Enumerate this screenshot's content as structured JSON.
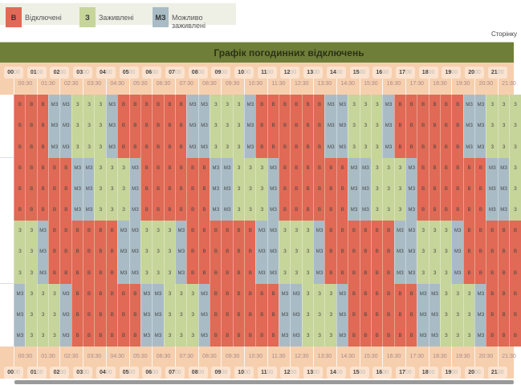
{
  "legend": [
    {
      "code": "В",
      "label": "Відключені",
      "color": "#e06a55"
    },
    {
      "code": "З",
      "label": "Заживлені",
      "color": "#c6d59a"
    },
    {
      "code": "МЗ",
      "label": "Можливо заживлені",
      "color": "#a9bcc6"
    }
  ],
  "pager_text": "Сторінку",
  "title": "Графік погодинних відключень",
  "hours": [
    "00",
    "01",
    "02",
    "03",
    "04",
    "05",
    "06",
    "07",
    "08",
    "09",
    "10",
    "11",
    "12",
    "13",
    "14",
    "15",
    "16",
    "17",
    "18",
    "19",
    "20",
    "21"
  ],
  "hour_minutes": "00",
  "half_hours": [
    "00:30",
    "01:30",
    "02:30",
    "03:30",
    "04:30",
    "05:30",
    "06:30",
    "07:30",
    "08:30",
    "09:30",
    "10:30",
    "11:30",
    "12:30",
    "13:30",
    "14:30",
    "15:30",
    "16:30",
    "17:30",
    "18:30",
    "19:30",
    "20:30",
    "21:30"
  ],
  "colors": {
    "В": "#e06a55",
    "З": "#c6d59a",
    "МЗ": "#a9bcc6",
    "header": "#f6cfae",
    "titlebar": "#6e7f3a"
  },
  "rows": [
    "В В В МЗ МЗ З З З МЗ В В В В В В МЗ МЗ З З З МЗ В В В В В В МЗ МЗ З З З МЗ В В В В В В МЗ МЗ З З З",
    "В В В МЗ МЗ З З З МЗ В В В В В В МЗ МЗ З З З МЗ В В В В В В МЗ МЗ З З З МЗ В В В В В В МЗ МЗ З З З",
    "В В В МЗ МЗ З З З МЗ В В В В В В МЗ МЗ З З З МЗ В В В В В В МЗ МЗ З З З МЗ В В В В В В МЗ МЗ З З З",
    "В В В В В МЗ МЗ З З З МЗ В В В В В В МЗ МЗ З З З МЗ В В В В В В МЗ МЗ З З З МЗ В В В В В В МЗ МЗ З",
    "В В В В В МЗ МЗ З З З МЗ В В В В В В МЗ МЗ З З З МЗ В В В В В В МЗ МЗ З З З МЗ В В В В В В МЗ МЗ З",
    "В В В В В МЗ МЗ З З З МЗ В В В В В В МЗ МЗ З З З МЗ В В В В В В МЗ МЗ З З З МЗ В В В В В В МЗ МЗ З",
    "З З МЗ В В В В В В МЗ МЗ З З З МЗ В В В В В В МЗ МЗ З З З МЗ В В В В В В МЗ МЗ З З З МЗ В В В В В",
    "З З МЗ В В В В В В МЗ МЗ З З З МЗ В В В В В В МЗ МЗ З З З МЗ В В В В В В МЗ МЗ З З З МЗ В В В В В",
    "З З МЗ В В В В В В МЗ МЗ З З З МЗ В В В В В В МЗ МЗ З З З МЗ В В В В В В МЗ МЗ З З З МЗ В В В В В",
    "МЗ З З З МЗ В В В В В В МЗ МЗ З З З МЗ В В В В В В МЗ МЗ З З З МЗ В В В В В В МЗ МЗ З З З МЗ В В В",
    "МЗ З З З МЗ В В В В В В МЗ МЗ З З З МЗ В В В В В В МЗ МЗ З З З МЗ В В В В В В МЗ МЗ З З З МЗ В В В",
    "МЗ З З З МЗ В В В В В В МЗ МЗ З З З МЗ В В В В В В МЗ МЗ З З З МЗ В В В В В В МЗ МЗ З З З МЗ В В В"
  ]
}
